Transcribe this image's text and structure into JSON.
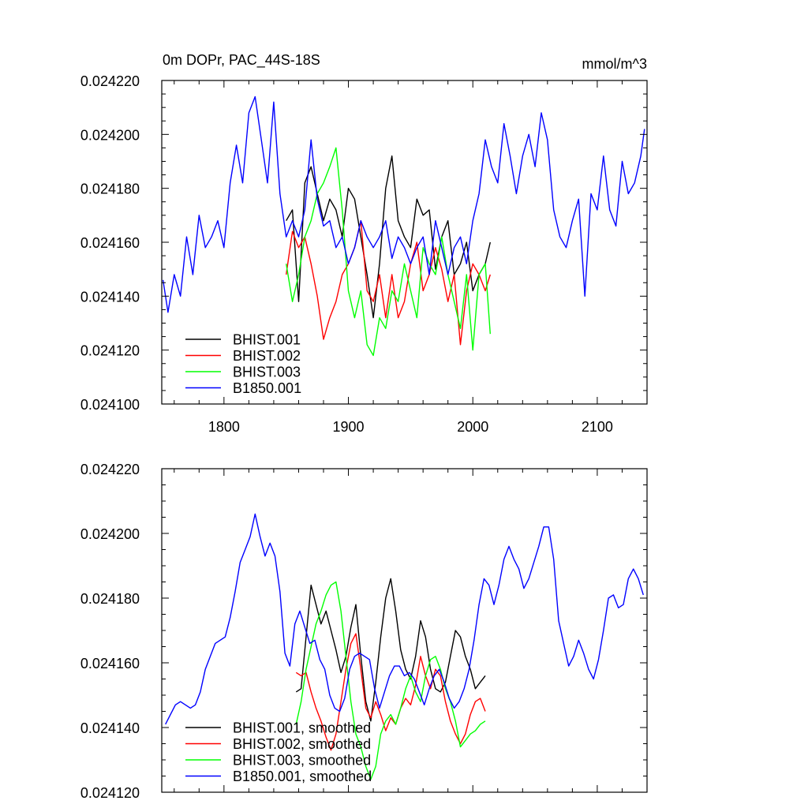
{
  "chart_data": [
    {
      "type": "line",
      "title": "0m DOPr, PAC_44S-18S",
      "units": "mmol/m^3",
      "xlim": [
        1750,
        2140
      ],
      "ylim": [
        0.0241,
        0.02422
      ],
      "xticks": [
        1800,
        1900,
        2000,
        2100
      ],
      "xtick_labels": [
        "1800",
        "1900",
        "2000",
        "2100"
      ],
      "yticks": [
        0.0241,
        0.02412,
        0.02414,
        0.02416,
        0.02418,
        0.0242,
        0.02422
      ],
      "ytick_labels": [
        "0.024100",
        "0.024120",
        "0.024140",
        "0.024160",
        "0.024180",
        "0.024200",
        "0.024220"
      ],
      "legend_position": "bottom-left",
      "series": [
        {
          "name": "BHIST.001",
          "color": "#000000",
          "x": [
            1850,
            1855,
            1860,
            1865,
            1870,
            1875,
            1880,
            1885,
            1890,
            1895,
            1900,
            1905,
            1910,
            1915,
            1920,
            1925,
            1930,
            1935,
            1940,
            1945,
            1950,
            1955,
            1960,
            1965,
            1970,
            1975,
            1980,
            1985,
            1990,
            1995,
            2000,
            2005,
            2010,
            2014
          ],
          "y": [
            0.024168,
            0.024172,
            0.024138,
            0.024182,
            0.024188,
            0.024178,
            0.024168,
            0.024176,
            0.024172,
            0.024162,
            0.02418,
            0.024176,
            0.024162,
            0.024148,
            0.024132,
            0.024152,
            0.02418,
            0.024192,
            0.024168,
            0.024162,
            0.024158,
            0.024176,
            0.02417,
            0.024172,
            0.02415,
            0.024162,
            0.024168,
            0.024148,
            0.024152,
            0.02416,
            0.024142,
            0.024148,
            0.024152,
            0.02416
          ]
        },
        {
          "name": "BHIST.002",
          "color": "#ff0000",
          "x": [
            1850,
            1855,
            1860,
            1865,
            1870,
            1875,
            1880,
            1885,
            1890,
            1895,
            1900,
            1905,
            1910,
            1915,
            1920,
            1925,
            1930,
            1935,
            1940,
            1945,
            1950,
            1955,
            1960,
            1965,
            1970,
            1975,
            1980,
            1985,
            1990,
            1995,
            2000,
            2005,
            2010,
            2014
          ],
          "y": [
            0.024148,
            0.024164,
            0.024158,
            0.024162,
            0.024152,
            0.02414,
            0.024124,
            0.024132,
            0.024138,
            0.024148,
            0.024152,
            0.024158,
            0.024168,
            0.024142,
            0.024138,
            0.024148,
            0.024132,
            0.024148,
            0.024132,
            0.024138,
            0.024152,
            0.02416,
            0.024142,
            0.024148,
            0.024158,
            0.02415,
            0.024138,
            0.024148,
            0.024122,
            0.024142,
            0.024152,
            0.024148,
            0.024142,
            0.024148
          ]
        },
        {
          "name": "BHIST.003",
          "color": "#00ff00",
          "x": [
            1850,
            1855,
            1860,
            1865,
            1870,
            1875,
            1880,
            1885,
            1890,
            1895,
            1900,
            1905,
            1910,
            1915,
            1920,
            1925,
            1930,
            1935,
            1940,
            1945,
            1950,
            1955,
            1960,
            1965,
            1970,
            1975,
            1980,
            1985,
            1990,
            1995,
            2000,
            2005,
            2010,
            2014
          ],
          "y": [
            0.024152,
            0.024138,
            0.024148,
            0.024162,
            0.024168,
            0.024178,
            0.024182,
            0.024188,
            0.024195,
            0.024172,
            0.024142,
            0.024132,
            0.024142,
            0.024122,
            0.024118,
            0.024132,
            0.024128,
            0.024142,
            0.024138,
            0.024152,
            0.024142,
            0.024132,
            0.024158,
            0.024152,
            0.024148,
            0.024162,
            0.024148,
            0.024138,
            0.024128,
            0.024148,
            0.02412,
            0.024148,
            0.024152,
            0.024126
          ]
        },
        {
          "name": "B1850.001",
          "color": "#0000ff",
          "x": [
            1751,
            1755,
            1760,
            1765,
            1770,
            1775,
            1780,
            1785,
            1790,
            1795,
            1800,
            1805,
            1810,
            1815,
            1820,
            1825,
            1830,
            1835,
            1840,
            1845,
            1850,
            1855,
            1860,
            1865,
            1870,
            1875,
            1880,
            1885,
            1890,
            1895,
            1900,
            1905,
            1910,
            1915,
            1920,
            1925,
            1930,
            1935,
            1940,
            1945,
            1950,
            1955,
            1960,
            1965,
            1970,
            1975,
            1980,
            1985,
            1990,
            1995,
            2000,
            2005,
            2010,
            2015,
            2020,
            2025,
            2030,
            2035,
            2040,
            2045,
            2050,
            2055,
            2060,
            2065,
            2070,
            2075,
            2080,
            2085,
            2090,
            2095,
            2100,
            2105,
            2110,
            2115,
            2120,
            2125,
            2130,
            2135,
            2138
          ],
          "y": [
            0.024146,
            0.024134,
            0.024148,
            0.02414,
            0.024162,
            0.024148,
            0.02417,
            0.024158,
            0.024162,
            0.024168,
            0.024158,
            0.024182,
            0.024196,
            0.024182,
            0.024208,
            0.024214,
            0.024198,
            0.024182,
            0.024212,
            0.024178,
            0.024162,
            0.024168,
            0.024162,
            0.024172,
            0.024198,
            0.024176,
            0.024166,
            0.024168,
            0.024158,
            0.024162,
            0.024152,
            0.024158,
            0.024168,
            0.024162,
            0.024158,
            0.024162,
            0.024168,
            0.024154,
            0.024162,
            0.024158,
            0.024152,
            0.024158,
            0.024162,
            0.024148,
            0.024168,
            0.024158,
            0.024148,
            0.024158,
            0.024162,
            0.024152,
            0.024168,
            0.024178,
            0.024198,
            0.024188,
            0.024182,
            0.024204,
            0.024192,
            0.024178,
            0.024192,
            0.0242,
            0.024188,
            0.024208,
            0.024198,
            0.024172,
            0.024162,
            0.024158,
            0.024168,
            0.024176,
            0.02414,
            0.024178,
            0.024172,
            0.024192,
            0.024172,
            0.024166,
            0.02419,
            0.024178,
            0.024182,
            0.024192,
            0.024202
          ]
        }
      ]
    },
    {
      "type": "line",
      "title": "",
      "xlim": [
        1750,
        2140
      ],
      "ylim": [
        0.02412,
        0.02422
      ],
      "xticks": [
        1800,
        1900,
        2000,
        2100
      ],
      "xtick_labels": [],
      "yticks": [
        0.02412,
        0.02414,
        0.02416,
        0.02418,
        0.0242,
        0.02422
      ],
      "ytick_labels": [
        "0.024120",
        "0.024140",
        "0.024160",
        "0.024180",
        "0.024200",
        "0.024220"
      ],
      "legend_position": "bottom-left",
      "series": [
        {
          "name": "BHIST.001, smoothed",
          "color": "#000000",
          "x": [
            1858,
            1862,
            1866,
            1870,
            1874,
            1878,
            1882,
            1886,
            1890,
            1894,
            1898,
            1902,
            1906,
            1910,
            1914,
            1918,
            1922,
            1926,
            1930,
            1934,
            1938,
            1942,
            1946,
            1950,
            1954,
            1958,
            1962,
            1966,
            1970,
            1974,
            1978,
            1982,
            1986,
            1990,
            1994,
            1998,
            2002,
            2006,
            2010
          ],
          "y": [
            0.024151,
            0.024152,
            0.024168,
            0.024184,
            0.024178,
            0.024172,
            0.024176,
            0.02417,
            0.024164,
            0.024157,
            0.024162,
            0.024171,
            0.024178,
            0.024162,
            0.024148,
            0.024142,
            0.024154,
            0.024168,
            0.02418,
            0.024186,
            0.024176,
            0.024164,
            0.024158,
            0.024155,
            0.024162,
            0.024173,
            0.024168,
            0.024158,
            0.024152,
            0.024151,
            0.024154,
            0.024162,
            0.02417,
            0.024168,
            0.024162,
            0.024158,
            0.024152,
            0.024154,
            0.024156
          ]
        },
        {
          "name": "BHIST.002, smoothed",
          "color": "#ff0000",
          "x": [
            1858,
            1862,
            1866,
            1870,
            1874,
            1878,
            1882,
            1886,
            1890,
            1894,
            1898,
            1902,
            1906,
            1910,
            1914,
            1918,
            1922,
            1926,
            1930,
            1934,
            1938,
            1942,
            1946,
            1950,
            1954,
            1958,
            1962,
            1966,
            1970,
            1974,
            1978,
            1982,
            1986,
            1990,
            1994,
            1998,
            2002,
            2006,
            2010
          ],
          "y": [
            0.024157,
            0.024156,
            0.024157,
            0.024151,
            0.024146,
            0.024142,
            0.024137,
            0.024133,
            0.024138,
            0.024148,
            0.024158,
            0.024166,
            0.024169,
            0.024158,
            0.024146,
            0.024143,
            0.024148,
            0.024144,
            0.024139,
            0.024143,
            0.024141,
            0.024146,
            0.024149,
            0.024147,
            0.024153,
            0.024162,
            0.024156,
            0.024152,
            0.024158,
            0.024156,
            0.024148,
            0.024142,
            0.024138,
            0.024135,
            0.024138,
            0.024144,
            0.024148,
            0.024149,
            0.024145
          ]
        },
        {
          "name": "BHIST.003, smoothed",
          "color": "#00ff00",
          "x": [
            1858,
            1862,
            1866,
            1870,
            1874,
            1878,
            1882,
            1886,
            1890,
            1894,
            1898,
            1902,
            1906,
            1910,
            1914,
            1918,
            1922,
            1926,
            1930,
            1934,
            1938,
            1942,
            1946,
            1950,
            1954,
            1958,
            1962,
            1966,
            1970,
            1974,
            1978,
            1982,
            1986,
            1990,
            1994,
            1998,
            2002,
            2006,
            2010
          ],
          "y": [
            0.024141,
            0.024148,
            0.024158,
            0.024165,
            0.024172,
            0.024176,
            0.024181,
            0.024184,
            0.024185,
            0.024176,
            0.024162,
            0.024148,
            0.024138,
            0.024134,
            0.024128,
            0.024124,
            0.024128,
            0.024138,
            0.024142,
            0.024144,
            0.024141,
            0.024146,
            0.024152,
            0.024156,
            0.024151,
            0.024148,
            0.024156,
            0.024161,
            0.024162,
            0.024158,
            0.024152,
            0.024148,
            0.024142,
            0.024134,
            0.024136,
            0.024138,
            0.024139,
            0.024141,
            0.024142
          ]
        },
        {
          "name": "B1850.001, smoothed",
          "color": "#0000ff",
          "x": [
            1753,
            1757,
            1761,
            1765,
            1769,
            1773,
            1777,
            1781,
            1785,
            1789,
            1793,
            1797,
            1801,
            1805,
            1809,
            1813,
            1817,
            1821,
            1825,
            1829,
            1833,
            1837,
            1841,
            1845,
            1849,
            1853,
            1857,
            1861,
            1865,
            1869,
            1873,
            1877,
            1881,
            1885,
            1889,
            1893,
            1897,
            1901,
            1905,
            1909,
            1913,
            1917,
            1921,
            1925,
            1929,
            1933,
            1937,
            1941,
            1945,
            1949,
            1953,
            1957,
            1961,
            1965,
            1969,
            1973,
            1977,
            1981,
            1985,
            1989,
            1993,
            1997,
            2001,
            2005,
            2009,
            2013,
            2017,
            2021,
            2025,
            2029,
            2033,
            2037,
            2041,
            2045,
            2049,
            2053,
            2057,
            2061,
            2065,
            2069,
            2073,
            2077,
            2081,
            2085,
            2089,
            2093,
            2097,
            2101,
            2105,
            2109,
            2113,
            2117,
            2121,
            2125,
            2129,
            2133,
            2137
          ],
          "y": [
            0.024141,
            0.024144,
            0.024147,
            0.024148,
            0.024147,
            0.024146,
            0.024147,
            0.024151,
            0.024158,
            0.024162,
            0.024166,
            0.024167,
            0.024168,
            0.024174,
            0.024182,
            0.024191,
            0.024195,
            0.024199,
            0.024206,
            0.024199,
            0.024193,
            0.024197,
            0.024193,
            0.024182,
            0.024163,
            0.024159,
            0.024172,
            0.024176,
            0.024171,
            0.024166,
            0.024167,
            0.024161,
            0.024158,
            0.02415,
            0.024146,
            0.024145,
            0.024149,
            0.024158,
            0.024162,
            0.024163,
            0.024162,
            0.024161,
            0.024152,
            0.024146,
            0.024151,
            0.024156,
            0.024159,
            0.024159,
            0.024156,
            0.024157,
            0.024155,
            0.024151,
            0.024147,
            0.024152,
            0.024156,
            0.024158,
            0.024154,
            0.024149,
            0.024146,
            0.024148,
            0.024152,
            0.024158,
            0.024167,
            0.024178,
            0.024186,
            0.024184,
            0.024178,
            0.024184,
            0.024192,
            0.024196,
            0.024192,
            0.024189,
            0.024183,
            0.024186,
            0.024191,
            0.024196,
            0.024202,
            0.024202,
            0.024192,
            0.024173,
            0.024166,
            0.024159,
            0.024162,
            0.024167,
            0.024163,
            0.024158,
            0.024155,
            0.024161,
            0.02417,
            0.02418,
            0.024181,
            0.024177,
            0.024178,
            0.024186,
            0.024189,
            0.024186,
            0.024181
          ]
        }
      ]
    }
  ]
}
